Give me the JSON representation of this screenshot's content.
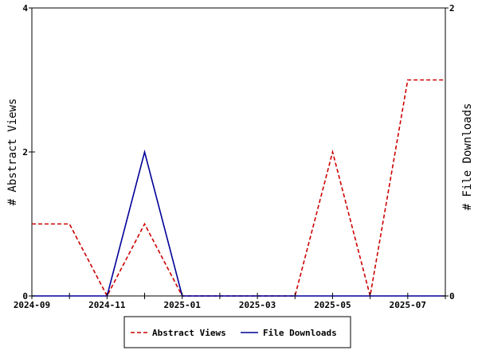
{
  "chart_data": {
    "type": "line",
    "x": [
      "2024-09",
      "2024-10",
      "2024-11",
      "2024-12",
      "2025-01",
      "2025-02",
      "2025-03",
      "2025-04",
      "2025-05",
      "2025-06",
      "2025-07",
      "2025-08"
    ],
    "x_tick_labels": [
      "2024-09",
      "2024-11",
      "2025-01",
      "2025-03",
      "2025-05",
      "2025-07"
    ],
    "xlim": [
      "2024-09",
      "2025-08"
    ],
    "series": [
      {
        "name": "Abstract Views",
        "axis": "left",
        "values": [
          1,
          1,
          0,
          1,
          0,
          0,
          0,
          0,
          2,
          0,
          3,
          3
        ],
        "color": "#cc0000",
        "line_style": "dashed"
      },
      {
        "name": "File Downloads",
        "axis": "right",
        "values": [
          0,
          0,
          0,
          1,
          0,
          0,
          0,
          0,
          0,
          0,
          0,
          0
        ],
        "color": "#000099",
        "line_style": "solid"
      }
    ],
    "ylabel": "# Abstract Views",
    "ylim": [
      0,
      4
    ],
    "y_ticks": [
      0,
      2,
      4
    ],
    "y2label": "# File Downloads",
    "y2lim": [
      0,
      2
    ],
    "y2_ticks": [
      0,
      2
    ],
    "grid": false,
    "legend_position": "bottom-center"
  }
}
